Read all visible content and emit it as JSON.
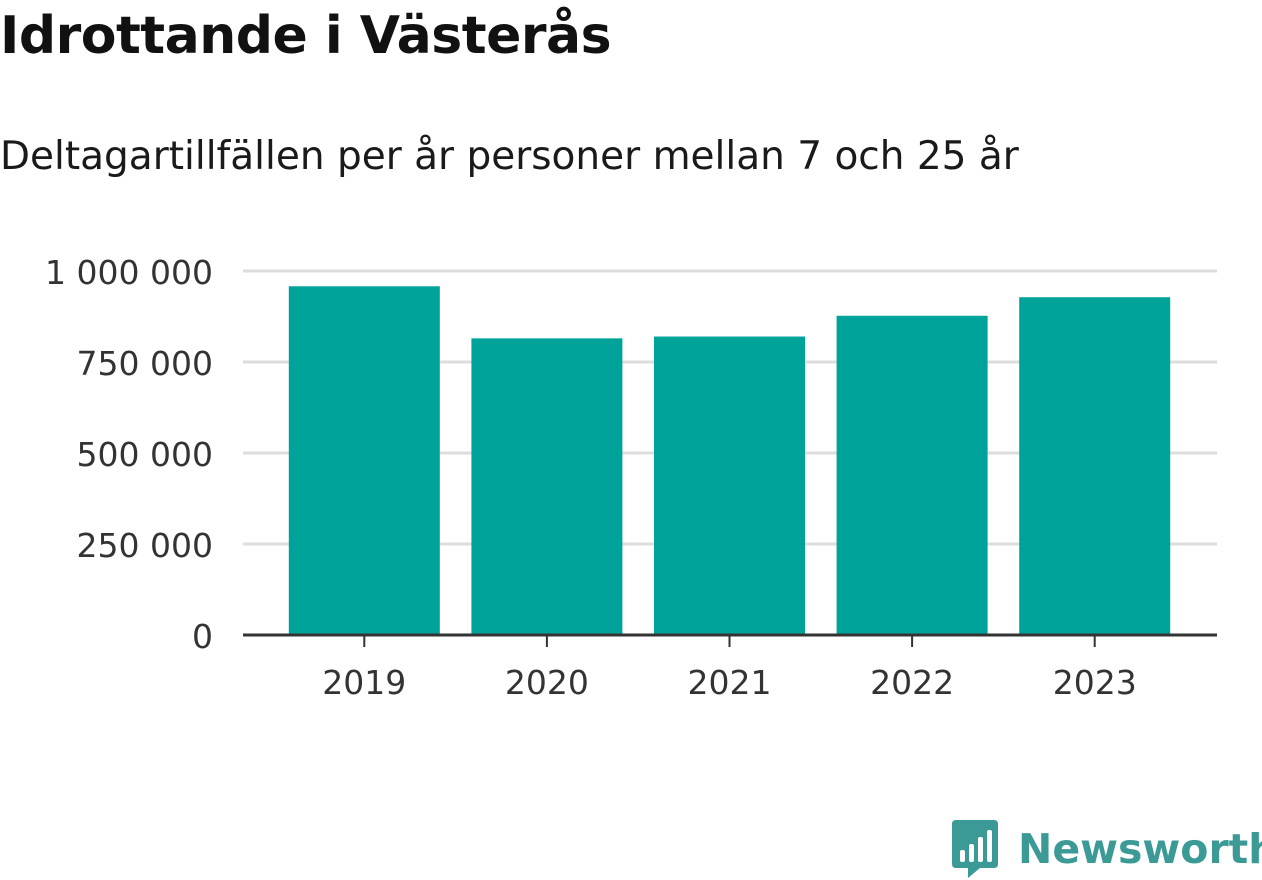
{
  "chart_data": {
    "type": "bar",
    "title": "Idrottande i Västerås",
    "subtitle": "Deltagartillfällen per år personer mellan 7 och 25 år",
    "categories": [
      "2019",
      "2020",
      "2021",
      "2022",
      "2023"
    ],
    "values": [
      958000,
      815000,
      820000,
      877000,
      928000
    ],
    "ylim": [
      0,
      1000000
    ],
    "yticks": [
      0,
      250000,
      500000,
      750000,
      1000000
    ],
    "ytick_labels": [
      "0",
      "250 000",
      "500 000",
      "750 000",
      "1 000 000"
    ],
    "xlabel": "",
    "ylabel": "",
    "grid": true,
    "legend": "none",
    "bar_color": "#00a39a",
    "grid_color": "#dddddd",
    "axis_color": "#333333"
  },
  "branding": {
    "logo_text": "Newsworthy",
    "logo_icon": "bar-chart-badge-icon",
    "logo_color": "#3c9a96"
  }
}
